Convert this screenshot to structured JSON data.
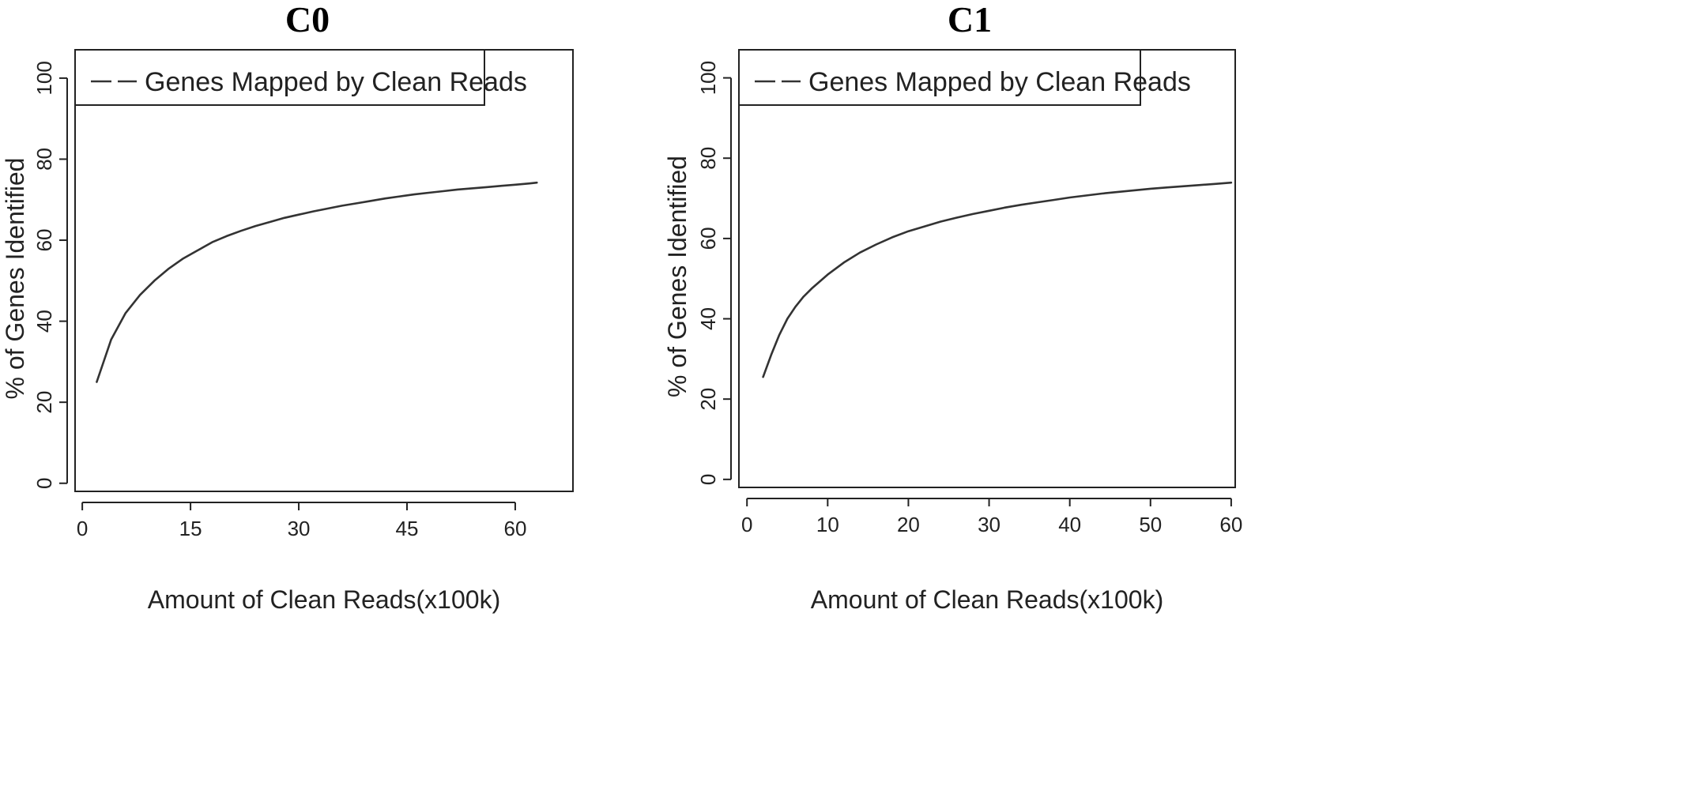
{
  "chart_data": [
    {
      "type": "line",
      "title": "C0",
      "xlabel": "Amount of Clean Reads(x100k)",
      "ylabel": "% of Genes Identified",
      "xlim": [
        -1,
        68
      ],
      "ylim": [
        -2,
        107
      ],
      "xticks": [
        0,
        15,
        30,
        45,
        60
      ],
      "yticks": [
        0,
        20,
        40,
        60,
        80,
        100
      ],
      "grid": false,
      "legend_position": "top-left",
      "series": [
        {
          "name": "Genes Mapped by Clean Reads",
          "color": "#333333",
          "x": [
            2,
            4,
            6,
            8,
            10,
            12,
            14,
            16,
            18,
            20,
            22,
            24,
            26,
            28,
            30,
            32,
            34,
            36,
            38,
            40,
            42,
            44,
            46,
            48,
            50,
            52,
            54,
            56,
            58,
            60,
            62,
            63
          ],
          "y": [
            25,
            35.5,
            42,
            46.5,
            50,
            53,
            55.5,
            57.5,
            59.5,
            61,
            62.3,
            63.5,
            64.5,
            65.5,
            66.3,
            67.1,
            67.8,
            68.5,
            69.1,
            69.7,
            70.3,
            70.8,
            71.3,
            71.7,
            72.1,
            72.5,
            72.8,
            73.1,
            73.4,
            73.7,
            74,
            74.2
          ]
        }
      ]
    },
    {
      "type": "line",
      "title": "C1",
      "xlabel": "Amount of Clean Reads(x100k)",
      "ylabel": "% of Genes Identified",
      "xlim": [
        -1,
        60.5
      ],
      "ylim": [
        -2,
        107
      ],
      "xticks": [
        0,
        10,
        20,
        30,
        40,
        50,
        60
      ],
      "yticks": [
        0,
        20,
        40,
        60,
        80,
        100
      ],
      "grid": false,
      "legend_position": "top-left",
      "series": [
        {
          "name": "Genes Mapped by Clean Reads",
          "color": "#333333",
          "x": [
            2,
            3,
            4,
            5,
            6,
            7,
            8,
            10,
            12,
            14,
            16,
            18,
            20,
            22,
            24,
            26,
            28,
            30,
            32,
            34,
            36,
            38,
            40,
            42,
            44,
            46,
            48,
            50,
            52,
            54,
            56,
            58,
            60
          ],
          "y": [
            25.5,
            31,
            36,
            40,
            43,
            45.5,
            47.5,
            51,
            54,
            56.5,
            58.5,
            60.3,
            61.8,
            63,
            64.2,
            65.2,
            66.1,
            66.9,
            67.7,
            68.4,
            69,
            69.6,
            70.2,
            70.7,
            71.2,
            71.6,
            72,
            72.4,
            72.7,
            73,
            73.3,
            73.6,
            73.9
          ]
        }
      ]
    }
  ]
}
